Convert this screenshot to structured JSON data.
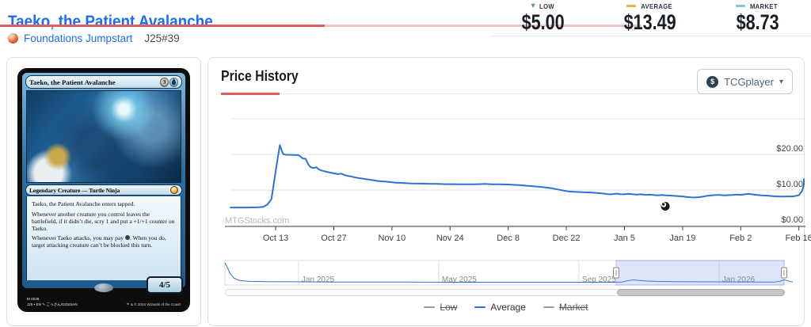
{
  "page": {
    "title": "Taeko, the Patient Avalanche"
  },
  "breadcrumb": {
    "set_name": "Foundations Jumpstart",
    "collector_number": "J25#39"
  },
  "stats": {
    "items": [
      {
        "label": "LOW",
        "value": "$5.00",
        "icon": "caret-down",
        "color": "#44a06b"
      },
      {
        "label": "AVERAGE",
        "value": "$13.49",
        "icon": "dash",
        "color": "#e5b93c"
      },
      {
        "label": "MARKET",
        "value": "$8.73",
        "icon": "dash",
        "color": "#7fc4e8"
      }
    ]
  },
  "card": {
    "title": "Taeko, the Patient Avalanche",
    "mana_cost": {
      "generic": "3",
      "colored": "blue"
    },
    "type_line": "Legendary Creature — Turtle Ninja",
    "rules": {
      "p1": "Taeko, the Patient Avalanche enters tapped.",
      "p2": "Whenever another creature you control leaves the battlefield, if it didn’t die, scry 1 and put a +1/+1 counter on Taeko.",
      "p3a": "Whenever Taeko attacks, you may pay ",
      "p3b": ". When you do, target attacking creature can’t be blocked this turn."
    },
    "power_toughness": "4/5",
    "collector_line1": "M 0039",
    "collector_line2": "J25 • EN",
    "artist": "ごっさん/GOSSAN",
    "copyright": "™ & © 2024 Wizards of the Coast"
  },
  "panel": {
    "title": "Price History",
    "vendor": "TCGplayer",
    "vendor_icon": "dollar-circle",
    "caret": "▾"
  },
  "chart_data": {
    "type": "line",
    "title": "Price History",
    "watermark": "MTGStocks.com",
    "grid": true,
    "legend_position": "bottom",
    "y_axis": {
      "range": [
        0,
        30
      ],
      "ticks": [
        {
          "label": "$0.00",
          "value": 0
        },
        {
          "label": "$10.00",
          "value": 10
        },
        {
          "label": "$20.00",
          "value": 20
        },
        {
          "label": "",
          "value": 30
        }
      ]
    },
    "x_axis": {
      "unit": "days (day 0 = Oct 2)",
      "range_days": [
        0,
        138.7
      ],
      "ticks": [
        {
          "label": "Oct 13",
          "day": 11
        },
        {
          "label": "Oct 27",
          "day": 25
        },
        {
          "label": "Nov 10",
          "day": 39
        },
        {
          "label": "Nov 24",
          "day": 53
        },
        {
          "label": "Dec 8",
          "day": 67
        },
        {
          "label": "Dec 22",
          "day": 81
        },
        {
          "label": "Jan 5",
          "day": 95
        },
        {
          "label": "Jan 19",
          "day": 109
        },
        {
          "label": "Feb 2",
          "day": 123
        },
        {
          "label": "Feb 16",
          "day": 137
        }
      ]
    },
    "series": [
      {
        "name": "Average",
        "color": "#2e72d2",
        "points": [
          [
            0,
            5.1
          ],
          [
            4,
            5.1
          ],
          [
            7,
            5.15
          ],
          [
            8,
            5.3
          ],
          [
            9,
            5.9
          ],
          [
            10,
            7.5
          ],
          [
            10.7,
            13
          ],
          [
            11.5,
            19
          ],
          [
            12,
            22.6
          ],
          [
            12.4,
            21.3
          ],
          [
            12.8,
            20.1
          ],
          [
            13.5,
            19.9
          ],
          [
            14.5,
            19.9
          ],
          [
            15.5,
            19.85
          ],
          [
            16.5,
            19.8
          ],
          [
            17,
            19.4
          ],
          [
            17.6,
            18.8
          ],
          [
            18.2,
            18.8
          ],
          [
            18.8,
            17.3
          ],
          [
            19.4,
            16.4
          ],
          [
            20,
            16.2
          ],
          [
            20.8,
            16.35
          ],
          [
            21.4,
            15.8
          ],
          [
            22,
            15.5
          ],
          [
            23,
            15.2
          ],
          [
            24,
            14.9
          ],
          [
            25,
            14.7
          ],
          [
            26,
            14.45
          ],
          [
            26.8,
            14.6
          ],
          [
            27.6,
            14.2
          ],
          [
            28.5,
            13.95
          ],
          [
            29.5,
            13.7
          ],
          [
            30.5,
            13.45
          ],
          [
            31.5,
            13.3
          ],
          [
            32.5,
            13.1
          ],
          [
            33.5,
            12.9
          ],
          [
            34.5,
            12.75
          ],
          [
            35.5,
            12.55
          ],
          [
            36.5,
            12.45
          ],
          [
            37.5,
            12.35
          ],
          [
            38.5,
            12.25
          ],
          [
            40,
            12.05
          ],
          [
            42,
            11.95
          ],
          [
            44,
            11.85
          ],
          [
            46,
            11.8
          ],
          [
            48,
            11.75
          ],
          [
            50,
            11.7
          ],
          [
            52,
            11.65
          ],
          [
            54,
            11.65
          ],
          [
            56,
            11.6
          ],
          [
            58,
            11.6
          ],
          [
            60,
            11.65
          ],
          [
            61.5,
            11.7
          ],
          [
            63,
            11.6
          ],
          [
            65,
            11.6
          ],
          [
            67,
            11.55
          ],
          [
            68.5,
            11.45
          ],
          [
            70,
            11.35
          ],
          [
            71.5,
            11.2
          ],
          [
            73,
            11.05
          ],
          [
            74.5,
            10.9
          ],
          [
            76,
            10.7
          ],
          [
            77.5,
            10.5
          ],
          [
            79,
            10.15
          ],
          [
            80.5,
            9.8
          ],
          [
            81.5,
            9.6
          ],
          [
            83,
            9.5
          ],
          [
            85,
            9.4
          ],
          [
            87,
            9.3
          ],
          [
            88.5,
            9.15
          ],
          [
            90,
            9.0
          ],
          [
            91,
            8.85
          ],
          [
            92,
            8.8
          ],
          [
            93,
            9.0
          ],
          [
            94,
            8.85
          ],
          [
            95,
            8.8
          ],
          [
            96,
            8.95
          ],
          [
            97,
            8.8
          ],
          [
            98,
            8.7
          ],
          [
            99,
            8.8
          ],
          [
            100,
            8.65
          ],
          [
            101,
            8.7
          ],
          [
            102,
            8.6
          ],
          [
            103,
            8.5
          ],
          [
            104,
            8.6
          ],
          [
            105,
            8.5
          ],
          [
            106,
            8.45
          ],
          [
            107,
            8.35
          ],
          [
            108,
            8.3
          ],
          [
            109,
            8.2
          ],
          [
            110,
            8.05
          ],
          [
            111,
            7.95
          ],
          [
            112,
            7.9
          ],
          [
            113,
            8.0
          ],
          [
            114,
            8.15
          ],
          [
            115,
            8.4
          ],
          [
            116,
            8.5
          ],
          [
            117,
            8.6
          ],
          [
            118,
            8.6
          ],
          [
            119,
            8.5
          ],
          [
            120,
            8.55
          ],
          [
            121,
            8.6
          ],
          [
            122,
            8.7
          ],
          [
            123,
            8.65
          ],
          [
            124,
            8.8
          ],
          [
            125,
            8.9
          ],
          [
            126,
            8.75
          ],
          [
            127,
            8.6
          ],
          [
            128,
            8.5
          ],
          [
            129,
            8.45
          ],
          [
            130,
            8.35
          ],
          [
            131,
            8.25
          ],
          [
            132,
            8.2
          ],
          [
            133,
            8.15
          ],
          [
            134,
            8.2
          ],
          [
            135,
            8.2
          ],
          [
            136,
            8.3
          ],
          [
            137,
            8.55
          ],
          [
            137.8,
            9.8
          ],
          [
            138.3,
            11.5
          ],
          [
            138.7,
            13.2
          ]
        ]
      }
    ],
    "hidden_series": [
      "Low",
      "Market"
    ],
    "navigator": {
      "unit": "months (0 = late Oct 2024)",
      "range_months": [
        0,
        15.95
      ],
      "value_range": [
        0,
        42
      ],
      "ticks": [
        {
          "label": "Jan 2025",
          "m": 2.1
        },
        {
          "label": "May 2025",
          "m": 6.1
        },
        {
          "label": "Sep 2025",
          "m": 10.1
        },
        {
          "label": "Jan 2026",
          "m": 14.1
        }
      ],
      "points": [
        [
          0,
          38
        ],
        [
          0.07,
          30
        ],
        [
          0.15,
          20
        ],
        [
          0.25,
          12
        ],
        [
          0.4,
          8
        ],
        [
          0.7,
          6.3
        ],
        [
          1.2,
          5.8
        ],
        [
          2,
          5.5
        ],
        [
          3,
          5.2
        ],
        [
          5,
          5
        ],
        [
          7,
          4.8
        ],
        [
          9,
          4.8
        ],
        [
          10.5,
          4.7
        ],
        [
          11.1,
          4.7
        ],
        [
          11.35,
          5.3
        ],
        [
          11.5,
          7.5
        ],
        [
          11.65,
          8.8
        ],
        [
          11.8,
          8
        ],
        [
          12,
          6.9
        ],
        [
          12.3,
          6.2
        ],
        [
          12.8,
          5.8
        ],
        [
          13.5,
          5.5
        ],
        [
          14.5,
          5.3
        ],
        [
          15.5,
          5.2
        ],
        [
          16.2,
          5.1
        ],
        [
          15.7,
          5.3
        ],
        [
          15.85,
          6.5
        ],
        [
          15.95,
          9
        ]
      ],
      "selection": [
        0.6997,
        1.0
      ]
    }
  },
  "legend": {
    "items": [
      {
        "label": "Low",
        "color": "#9a9a9a",
        "struck": true
      },
      {
        "label": "Average",
        "color": "#2e72d2",
        "struck": false
      },
      {
        "label": "Market",
        "color": "#9a9a9a",
        "struck": true
      }
    ]
  }
}
